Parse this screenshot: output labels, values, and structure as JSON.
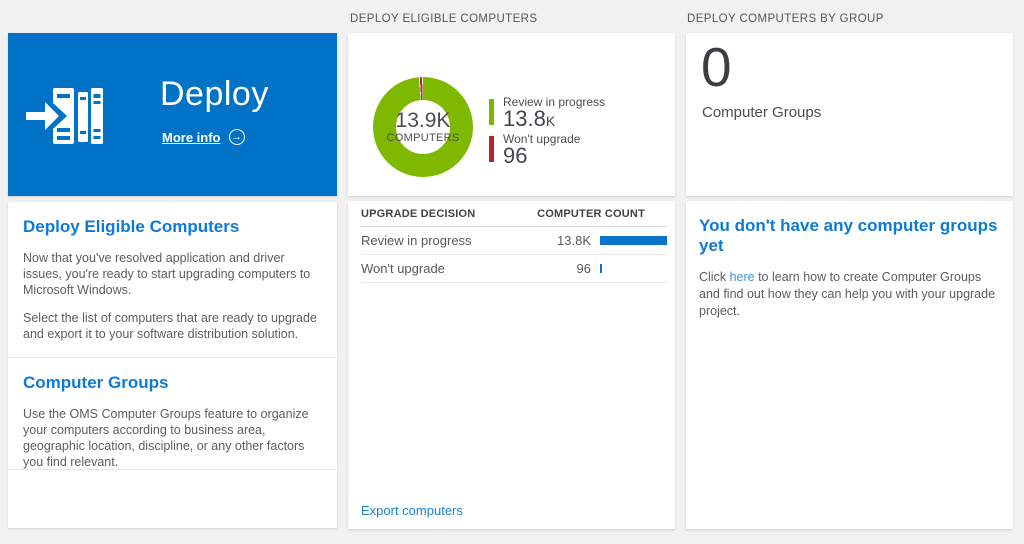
{
  "colors": {
    "page_bg": "#f1f1f2",
    "tile_blue": "#0173c6",
    "heading_blue": "#0e7ad6",
    "link_blue": "#1683d8",
    "inline_link_blue": "#3b97d8",
    "green": "#7eb900",
    "red": "#b6242c",
    "bar_blue": "#0b74c9",
    "text_dark": "#4a4d51",
    "text_gray": "#5a5d61"
  },
  "column_headers": {
    "eligible": "DEPLOY ELIGIBLE COMPUTERS",
    "by_group": "DEPLOY COMPUTERS BY GROUP"
  },
  "deploy_tile": {
    "title": "Deploy",
    "more_info_label": "More info",
    "arrow_glyph": "→"
  },
  "info_sections": [
    {
      "title": "Deploy Eligible Computers",
      "paragraphs": [
        "Now that you've resolved application and driver issues, you're ready to start upgrading computers to Microsoft Windows.",
        "Select the list of computers that are ready to upgrade and export it to your software distribution solution."
      ]
    },
    {
      "title": "Computer Groups",
      "paragraphs": [
        "Use the OMS Computer Groups feature to organize your computers according to business area, geographic location, discipline, or any other factors you find relevant."
      ]
    }
  ],
  "donut": {
    "center_value": "13.9K",
    "center_label": "COMPUTERS",
    "legend": [
      {
        "label": "Review in progress",
        "value": "13.8",
        "suffix": "K",
        "color": "#7eb900"
      },
      {
        "label": "Won't upgrade",
        "value": "96",
        "suffix": "",
        "color": "#b6242c"
      }
    ]
  },
  "table": {
    "columns": [
      "UPGRADE DECISION",
      "COMPUTER COUNT"
    ],
    "rows": [
      {
        "label": "Review in progress",
        "count": "13.8K"
      },
      {
        "label": "Won't upgrade",
        "count": "96"
      }
    ],
    "action": "Export computers"
  },
  "groups_tile": {
    "count": "0",
    "label": "Computer Groups"
  },
  "groups_info": {
    "title": "You don't have any computer groups yet",
    "text_before_link": "Click ",
    "link_text": "here",
    "text_after_link": " to learn how to create Computer Groups and find out how they can help you with your upgrade project."
  },
  "chart_data": [
    {
      "type": "pie",
      "subtype": "donut",
      "title": "DEPLOY ELIGIBLE COMPUTERS",
      "labels": [
        "Review in progress",
        "Won't upgrade"
      ],
      "values": [
        13800,
        96
      ],
      "display_values": [
        "13.8K",
        "96"
      ],
      "colors": [
        "#7eb900",
        "#b6242c"
      ],
      "center_value": "13.9K",
      "center_label": "COMPUTERS",
      "legend_position": "right"
    },
    {
      "type": "bar",
      "orientation": "horizontal",
      "columns": [
        "UPGRADE DECISION",
        "COMPUTER COUNT"
      ],
      "categories": [
        "Review in progress",
        "Won't upgrade"
      ],
      "values": [
        13800,
        96
      ],
      "display_values": [
        "13.8K",
        "96"
      ],
      "bar_color": "#0b74c9",
      "bar_max": 13800
    }
  ]
}
